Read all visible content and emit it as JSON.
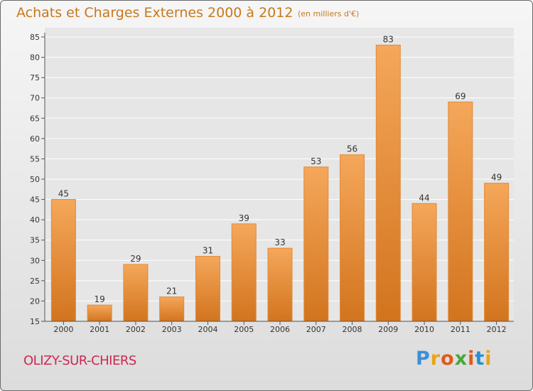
{
  "chart_data": {
    "type": "bar",
    "title": "Achats et Charges Externes 2000 à 2012",
    "subtitle": "(en milliers d'€)",
    "categories": [
      "2000",
      "2001",
      "2002",
      "2003",
      "2004",
      "2005",
      "2006",
      "2007",
      "2008",
      "2009",
      "2010",
      "2011",
      "2012"
    ],
    "values": [
      45,
      19,
      29,
      21,
      31,
      39,
      33,
      53,
      56,
      83,
      44,
      69,
      49
    ],
    "ylim": [
      15,
      85
    ],
    "yticks": [
      15,
      20,
      25,
      30,
      35,
      40,
      45,
      50,
      55,
      60,
      65,
      70,
      75,
      80,
      85
    ],
    "grid": true,
    "colors": {
      "bar_top": "#f5a75a",
      "bar_bottom": "#d2741e",
      "bar_edge": "#e08a38",
      "grid": "#ffffff"
    }
  },
  "footer": {
    "commune": "OLIZY-SUR-CHIERS",
    "logo_letters": [
      "P",
      "r",
      "o",
      "x",
      "i",
      "t",
      "i"
    ],
    "logo_colors": [
      "#3d8fd6",
      "#e8a51a",
      "#e05a1a",
      "#46a83a",
      "#e05a1a",
      "#2c8fd0",
      "#e8a51a"
    ]
  }
}
